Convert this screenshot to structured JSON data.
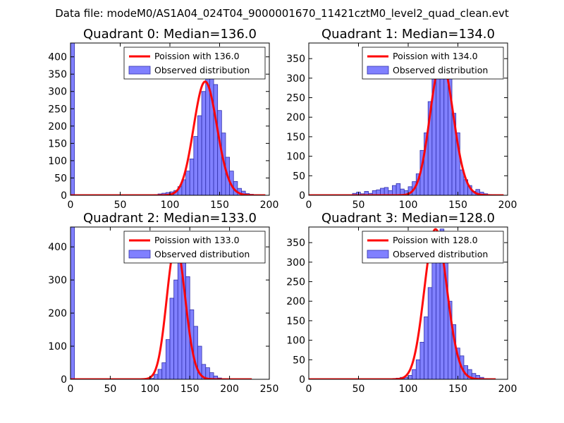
{
  "suptitle": "Data file: modeM0/AS1A04_024T04_9000001670_11421cztM0_level2_quad_clean.evt",
  "colors": {
    "bar_fill": "#8080ff",
    "bar_edge": "#3030aa",
    "poisson": "#ff0000",
    "background": "#ffffff"
  },
  "chart_data": [
    {
      "type": "bar",
      "title": "Quadrant 0: Median=136.0",
      "median": 136.0,
      "xlim": [
        0,
        200
      ],
      "ylim": [
        0,
        440
      ],
      "xticks": [
        0,
        50,
        100,
        150,
        200
      ],
      "yticks": [
        0,
        50,
        100,
        150,
        200,
        250,
        300,
        350,
        400
      ],
      "bin_width": 4,
      "bin_starts": [
        0,
        4,
        8,
        12,
        16,
        20,
        24,
        28,
        32,
        36,
        40,
        44,
        48,
        52,
        56,
        60,
        64,
        68,
        72,
        76,
        80,
        84,
        88,
        92,
        96,
        100,
        104,
        108,
        112,
        116,
        120,
        124,
        128,
        132,
        136,
        140,
        144,
        148,
        152,
        156,
        160,
        164,
        168,
        172,
        176,
        180,
        184,
        188,
        192,
        196
      ],
      "values": [
        445,
        0,
        0,
        0,
        0,
        0,
        0,
        0,
        0,
        0,
        0,
        0,
        0,
        0,
        0,
        0,
        0,
        0,
        0,
        0,
        0,
        2,
        4,
        6,
        8,
        10,
        14,
        25,
        45,
        70,
        105,
        170,
        230,
        300,
        395,
        375,
        320,
        245,
        180,
        110,
        70,
        40,
        20,
        12,
        5,
        3,
        1,
        0,
        0,
        0
      ],
      "poisson_lambda": 136.0,
      "poisson_scale": 9600,
      "poisson_x_range": [
        0,
        196
      ],
      "legend": {
        "line_label": "Poission with 136.0",
        "bar_label": "Observed distribution",
        "position": "upper right"
      }
    },
    {
      "type": "bar",
      "title": "Quadrant 1: Median=134.0",
      "median": 134.0,
      "xlim": [
        0,
        200
      ],
      "ylim": [
        0,
        390
      ],
      "xticks": [
        0,
        50,
        100,
        150,
        200
      ],
      "yticks": [
        0,
        50,
        100,
        150,
        200,
        250,
        300,
        350
      ],
      "bin_width": 4,
      "bin_starts": [
        0,
        4,
        8,
        12,
        16,
        20,
        24,
        28,
        32,
        36,
        40,
        44,
        48,
        52,
        56,
        60,
        64,
        68,
        72,
        76,
        80,
        84,
        88,
        92,
        96,
        100,
        104,
        108,
        112,
        116,
        120,
        124,
        128,
        132,
        136,
        140,
        144,
        148,
        152,
        156,
        160,
        164,
        168,
        172,
        176,
        180,
        184,
        188,
        192
      ],
      "values": [
        0,
        0,
        0,
        0,
        0,
        0,
        0,
        0,
        0,
        0,
        0,
        5,
        8,
        4,
        10,
        5,
        12,
        14,
        18,
        20,
        12,
        25,
        30,
        16,
        12,
        22,
        35,
        55,
        115,
        160,
        240,
        300,
        335,
        360,
        335,
        300,
        210,
        160,
        65,
        40,
        25,
        10,
        15,
        8,
        4,
        2,
        1,
        0,
        0
      ],
      "poisson_lambda": 134.0,
      "poisson_scale": 10000,
      "poisson_x_range": [
        0,
        196
      ],
      "legend": {
        "line_label": "Poission with 134.0",
        "bar_label": "Observed distribution",
        "position": "upper right"
      }
    },
    {
      "type": "bar",
      "title": "Quadrant 2: Median=133.0",
      "median": 133.0,
      "xlim": [
        0,
        250
      ],
      "ylim": [
        0,
        460
      ],
      "xticks": [
        0,
        50,
        100,
        150,
        200,
        250
      ],
      "yticks": [
        0,
        100,
        200,
        300,
        400
      ],
      "bin_width": 5,
      "bin_starts": [
        0,
        5,
        10,
        15,
        20,
        25,
        30,
        35,
        40,
        45,
        50,
        55,
        60,
        65,
        70,
        75,
        80,
        85,
        90,
        95,
        100,
        105,
        110,
        115,
        120,
        125,
        130,
        135,
        140,
        145,
        150,
        155,
        160,
        165,
        170,
        175,
        180,
        185,
        190,
        195,
        200,
        205,
        210,
        215,
        220,
        225
      ],
      "values": [
        460,
        0,
        0,
        0,
        0,
        0,
        0,
        0,
        0,
        0,
        0,
        0,
        0,
        0,
        0,
        0,
        0,
        0,
        0,
        0,
        3,
        15,
        30,
        50,
        120,
        245,
        300,
        390,
        420,
        310,
        210,
        160,
        100,
        45,
        35,
        20,
        10,
        4,
        2,
        1,
        0,
        0,
        0,
        0,
        0,
        0
      ],
      "poisson_lambda": 133.0,
      "poisson_scale": 11800,
      "poisson_x_range": [
        0,
        228
      ],
      "legend": {
        "line_label": "Poission with 133.0",
        "bar_label": "Observed distribution",
        "position": "upper right"
      }
    },
    {
      "type": "bar",
      "title": "Quadrant 3: Median=128.0",
      "median": 128.0,
      "xlim": [
        0,
        200
      ],
      "ylim": [
        0,
        390
      ],
      "xticks": [
        0,
        50,
        100,
        150,
        200
      ],
      "yticks": [
        0,
        50,
        100,
        150,
        200,
        250,
        300,
        350
      ],
      "bin_width": 4,
      "bin_starts": [
        0,
        4,
        8,
        12,
        16,
        20,
        24,
        28,
        32,
        36,
        40,
        44,
        48,
        52,
        56,
        60,
        64,
        68,
        72,
        76,
        80,
        84,
        88,
        92,
        96,
        100,
        104,
        108,
        112,
        116,
        120,
        124,
        128,
        132,
        136,
        140,
        144,
        148,
        152,
        156,
        160,
        164,
        168,
        172,
        176,
        180,
        184
      ],
      "values": [
        0,
        0,
        0,
        0,
        0,
        0,
        0,
        0,
        0,
        0,
        0,
        0,
        0,
        0,
        0,
        0,
        0,
        0,
        0,
        0,
        0,
        2,
        3,
        5,
        5,
        10,
        25,
        50,
        95,
        160,
        235,
        310,
        350,
        385,
        335,
        200,
        140,
        80,
        60,
        35,
        25,
        15,
        10,
        5,
        2,
        1,
        0
      ],
      "poisson_lambda": 128.0,
      "poisson_scale": 10900,
      "poisson_x_range": [
        0,
        188
      ],
      "legend": {
        "line_label": "Poission with 128.0",
        "bar_label": "Observed distribution",
        "position": "upper right"
      }
    }
  ]
}
